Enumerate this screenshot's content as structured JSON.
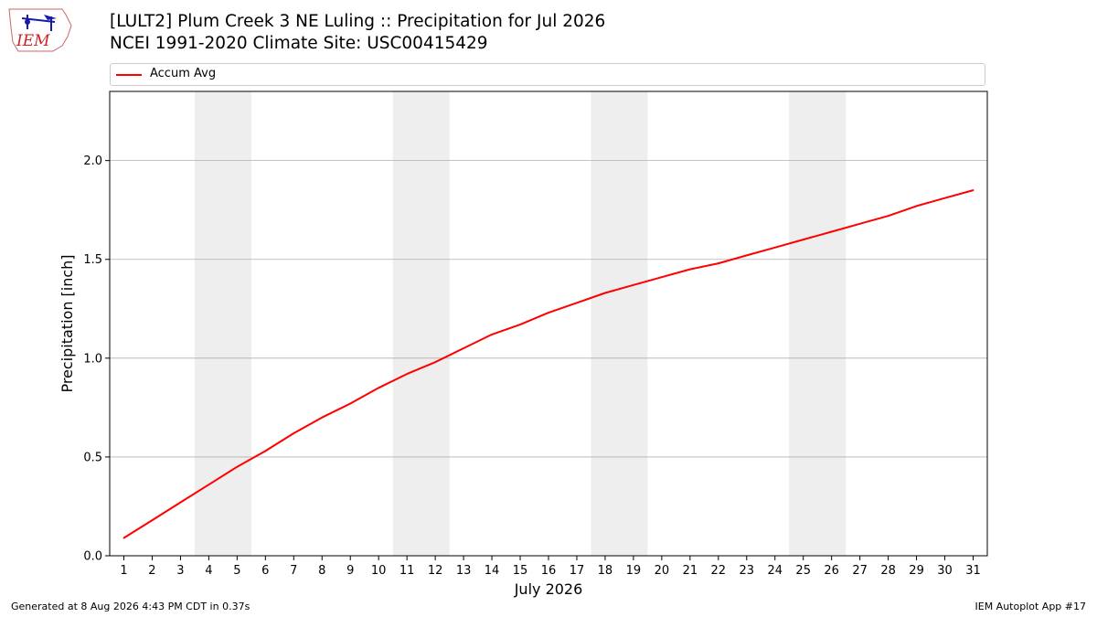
{
  "logo": {
    "text": "IEM"
  },
  "header": {
    "title_line1": "[LULT2] Plum Creek 3 NE Luling :: Precipitation for Jul 2026",
    "title_line2": "NCEI 1991-2020 Climate Site: USC00415429"
  },
  "footer": {
    "generated": "Generated at 8 Aug 2026 4:43 PM CDT in 0.37s",
    "app": "IEM Autoplot App #17"
  },
  "chart_data": {
    "type": "line",
    "xlabel": "July 2026",
    "ylabel": "Precipitation [inch]",
    "ylim": [
      0,
      2.35
    ],
    "xlim": [
      0.5,
      31.5
    ],
    "yticks": [
      0.0,
      0.5,
      1.0,
      1.5,
      2.0
    ],
    "ytick_labels": [
      "0.0",
      "0.5",
      "1.0",
      "1.5",
      "2.0"
    ],
    "x": [
      1,
      2,
      3,
      4,
      5,
      6,
      7,
      8,
      9,
      10,
      11,
      12,
      13,
      14,
      15,
      16,
      17,
      18,
      19,
      20,
      21,
      22,
      23,
      24,
      25,
      26,
      27,
      28,
      29,
      30,
      31
    ],
    "xtick_labels": [
      "1",
      "2",
      "3",
      "4",
      "5",
      "6",
      "7",
      "8",
      "9",
      "10",
      "11",
      "12",
      "13",
      "14",
      "15",
      "16",
      "17",
      "18",
      "19",
      "20",
      "21",
      "22",
      "23",
      "24",
      "25",
      "26",
      "27",
      "28",
      "29",
      "30",
      "31"
    ],
    "series": [
      {
        "name": "Accum Avg",
        "color": "#ff0000",
        "values": [
          0.09,
          0.18,
          0.27,
          0.36,
          0.45,
          0.53,
          0.62,
          0.7,
          0.77,
          0.85,
          0.92,
          0.98,
          1.05,
          1.12,
          1.17,
          1.23,
          1.28,
          1.33,
          1.37,
          1.41,
          1.45,
          1.48,
          1.52,
          1.56,
          1.6,
          1.64,
          1.68,
          1.72,
          1.77,
          1.81,
          1.85
        ]
      }
    ],
    "weekend_spans": [
      [
        4,
        5
      ],
      [
        11,
        12
      ],
      [
        18,
        19
      ],
      [
        25,
        26
      ]
    ],
    "weekend_color": "#eeeeee",
    "grid": "horizontal",
    "grid_color": "#b0b0b0",
    "legend_position": "top"
  }
}
